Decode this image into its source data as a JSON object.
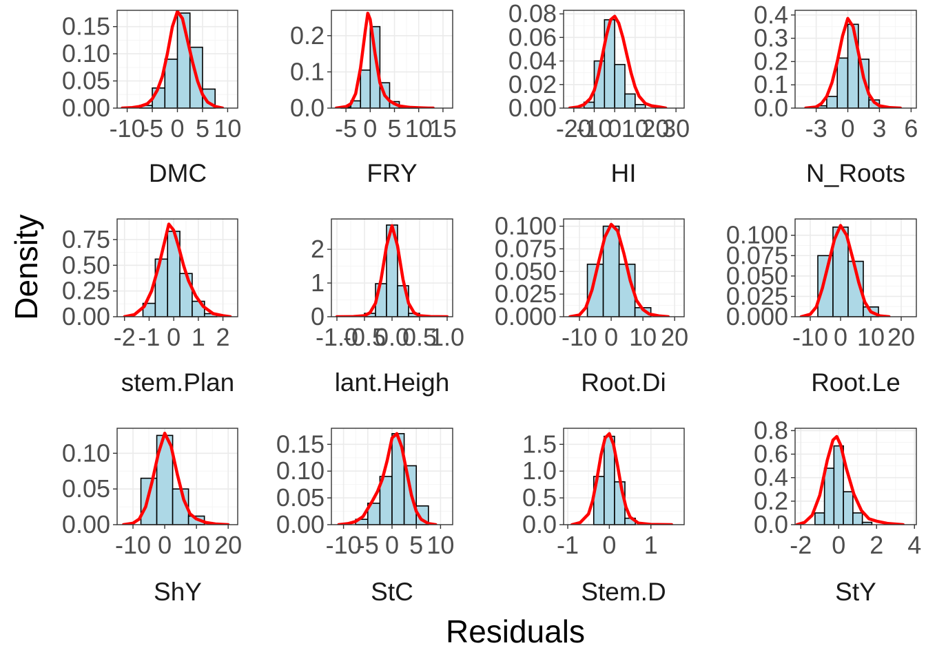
{
  "figure": {
    "xlabel": "Residuals",
    "ylabel": "Density"
  },
  "colors": {
    "bar_fill": "#add8e6",
    "bar_stroke": "#000000",
    "density_line": "#ff0000",
    "grid_major": "#ebebeb",
    "grid_minor": "#f5f5f5",
    "panel_border": "#333333"
  },
  "chart_data": [
    {
      "type": "bar",
      "title": "DMC",
      "xlim": [
        -12,
        12
      ],
      "ylim": [
        0,
        0.18
      ],
      "x_ticks": [
        -10,
        -5,
        0,
        5,
        10
      ],
      "x_tick_labels": [
        "-10",
        "-5",
        "0",
        "5",
        "10"
      ],
      "y_ticks": [
        0,
        0.05,
        0.1,
        0.15
      ],
      "y_tick_labels": [
        "0.00",
        "0.05",
        "0.10",
        "0.15"
      ],
      "bin_edges": [
        -7.5,
        -5,
        -2.5,
        0,
        2.5,
        5,
        7.5
      ],
      "bin_values": [
        0.005,
        0.037,
        0.09,
        0.175,
        0.112,
        0.035
      ],
      "density": {
        "x": [
          -11,
          -9,
          -7.5,
          -6,
          -5,
          -4,
          -3,
          -2,
          -1,
          0,
          1,
          2,
          3,
          4,
          5,
          6,
          7.5,
          9
        ],
        "y": [
          0,
          0.001,
          0.003,
          0.008,
          0.017,
          0.033,
          0.058,
          0.1,
          0.15,
          0.178,
          0.165,
          0.125,
          0.085,
          0.05,
          0.025,
          0.011,
          0.003,
          0
        ]
      }
    },
    {
      "type": "bar",
      "title": "FRY",
      "xlim": [
        -8,
        17
      ],
      "ylim": [
        0,
        0.27
      ],
      "x_ticks": [
        -5,
        0,
        5,
        10,
        15
      ],
      "x_tick_labels": [
        "-5",
        "0",
        "5",
        "10",
        "15"
      ],
      "y_ticks": [
        0,
        0.1,
        0.2
      ],
      "y_tick_labels": [
        "0.0",
        "0.1",
        "0.2"
      ],
      "bin_edges": [
        -6,
        -4,
        -2,
        0,
        2,
        4,
        6,
        8,
        10
      ],
      "bin_values": [
        0.003,
        0.02,
        0.105,
        0.225,
        0.07,
        0.018,
        0.005,
        0.001
      ],
      "density": {
        "x": [
          -7,
          -5,
          -4,
          -3,
          -2,
          -1,
          -0.5,
          0,
          1,
          2,
          3,
          4,
          5,
          6,
          8,
          10,
          12,
          13
        ],
        "y": [
          0,
          0.004,
          0.012,
          0.04,
          0.11,
          0.215,
          0.262,
          0.245,
          0.15,
          0.07,
          0.035,
          0.02,
          0.012,
          0.006,
          0.002,
          0.001,
          0,
          0
        ]
      }
    },
    {
      "type": "bar",
      "title": "HI",
      "xlim": [
        -25,
        34
      ],
      "ylim": [
        0,
        0.083
      ],
      "x_ticks": [
        -20,
        -10,
        0,
        10,
        20,
        30
      ],
      "x_tick_labels": [
        "-20",
        "-10",
        "0",
        "10",
        "20",
        "30"
      ],
      "y_ticks": [
        0,
        0.02,
        0.04,
        0.06,
        0.08
      ],
      "y_tick_labels": [
        "0.00",
        "0.02",
        "0.04",
        "0.06",
        "0.08"
      ],
      "bin_edges": [
        -15,
        -10,
        -5,
        0,
        5,
        10,
        15
      ],
      "bin_values": [
        0.005,
        0.04,
        0.075,
        0.037,
        0.012,
        0.003
      ],
      "density": {
        "x": [
          -22,
          -18,
          -15,
          -12,
          -10,
          -8,
          -6,
          -4,
          -2,
          0,
          2,
          4,
          6,
          8,
          10,
          12,
          15,
          18,
          22,
          25
        ],
        "y": [
          0,
          0.001,
          0.003,
          0.008,
          0.015,
          0.028,
          0.045,
          0.062,
          0.075,
          0.078,
          0.072,
          0.06,
          0.045,
          0.03,
          0.018,
          0.01,
          0.004,
          0.002,
          0.001,
          0
        ]
      }
    },
    {
      "type": "bar",
      "title": "N_Roots",
      "xlim": [
        -5,
        6.5
      ],
      "ylim": [
        0,
        0.42
      ],
      "x_ticks": [
        -3,
        0,
        3,
        6
      ],
      "x_tick_labels": [
        "-3",
        "0",
        "3",
        "6"
      ],
      "y_ticks": [
        0,
        0.1,
        0.2,
        0.3,
        0.4
      ],
      "y_tick_labels": [
        "0.0",
        "0.1",
        "0.2",
        "0.3",
        "0.4"
      ],
      "bin_edges": [
        -3,
        -2,
        -1,
        0,
        1,
        2,
        3
      ],
      "bin_values": [
        0.01,
        0.05,
        0.215,
        0.36,
        0.21,
        0.035
      ],
      "density": {
        "x": [
          -4,
          -3,
          -2.5,
          -2,
          -1.5,
          -1,
          -0.5,
          0,
          0.5,
          1,
          1.5,
          2,
          2.5,
          3,
          4,
          5
        ],
        "y": [
          0,
          0.005,
          0.02,
          0.05,
          0.11,
          0.2,
          0.31,
          0.385,
          0.35,
          0.24,
          0.13,
          0.06,
          0.025,
          0.01,
          0.002,
          0
        ]
      }
    },
    {
      "type": "bar",
      "title": "stem.Plan",
      "xlim": [
        -2.3,
        2.6
      ],
      "ylim": [
        0,
        0.95
      ],
      "x_ticks": [
        -2,
        -1,
        0,
        1,
        2
      ],
      "x_tick_labels": [
        "-2",
        "-1",
        "0",
        "1",
        "2"
      ],
      "y_ticks": [
        0,
        0.25,
        0.5,
        0.75
      ],
      "y_tick_labels": [
        "0.00",
        "0.25",
        "0.50",
        "0.75"
      ],
      "bin_edges": [
        -1.25,
        -0.75,
        -0.25,
        0.25,
        0.75,
        1.25,
        1.75
      ],
      "bin_values": [
        0.13,
        0.56,
        0.83,
        0.42,
        0.15,
        0.03
      ],
      "density": {
        "x": [
          -2,
          -1.6,
          -1.2,
          -0.9,
          -0.6,
          -0.4,
          -0.2,
          0,
          0.2,
          0.4,
          0.6,
          0.9,
          1.2,
          1.6,
          2,
          2.3
        ],
        "y": [
          0,
          0.02,
          0.1,
          0.25,
          0.5,
          0.7,
          0.9,
          0.84,
          0.68,
          0.5,
          0.35,
          0.2,
          0.1,
          0.03,
          0.01,
          0
        ]
      }
    },
    {
      "type": "bar",
      "title": "lant.Heigh",
      "xlim": [
        -1.1,
        1.1
      ],
      "ylim": [
        0,
        2.9
      ],
      "x_ticks": [
        -1.0,
        -0.5,
        0.0,
        0.5,
        1.0
      ],
      "x_tick_labels": [
        "-1.0",
        "-0.5",
        "0.0",
        "0.5",
        "1.0"
      ],
      "y_ticks": [
        0,
        1,
        2
      ],
      "y_tick_labels": [
        "0",
        "1",
        "2"
      ],
      "bin_edges": [
        -0.5,
        -0.3,
        -0.1,
        0.1,
        0.3,
        0.5
      ],
      "bin_values": [
        0.1,
        0.98,
        2.72,
        0.92,
        0.1
      ],
      "density": {
        "x": [
          -1,
          -0.7,
          -0.5,
          -0.4,
          -0.3,
          -0.2,
          -0.1,
          0,
          0.1,
          0.2,
          0.3,
          0.4,
          0.5,
          0.7,
          1
        ],
        "y": [
          0,
          0.005,
          0.03,
          0.12,
          0.4,
          1.1,
          2.1,
          2.7,
          2.1,
          1.1,
          0.4,
          0.12,
          0.03,
          0.005,
          0
        ]
      }
    },
    {
      "type": "bar",
      "title": "Root.Di",
      "xlim": [
        -15,
        23
      ],
      "ylim": [
        0,
        0.108
      ],
      "x_ticks": [
        -10,
        0,
        10,
        20
      ],
      "x_tick_labels": [
        "-10",
        "0",
        "10",
        "20"
      ],
      "y_ticks": [
        0,
        0.025,
        0.05,
        0.075,
        0.1
      ],
      "y_tick_labels": [
        "0.000",
        "0.025",
        "0.050",
        "0.075",
        "0.100"
      ],
      "bin_edges": [
        -7.5,
        -2.5,
        2.5,
        7.5,
        12.5
      ],
      "bin_values": [
        0.058,
        0.1,
        0.058,
        0.01
      ],
      "density": {
        "x": [
          -13,
          -10,
          -8,
          -6,
          -4,
          -2,
          0,
          2,
          4,
          6,
          8,
          10,
          12,
          15,
          18
        ],
        "y": [
          0,
          0.002,
          0.01,
          0.03,
          0.06,
          0.088,
          0.102,
          0.095,
          0.07,
          0.04,
          0.018,
          0.008,
          0.003,
          0.001,
          0
        ]
      }
    },
    {
      "type": "bar",
      "title": "Root.Le",
      "xlim": [
        -15,
        25
      ],
      "ylim": [
        0,
        0.12
      ],
      "x_ticks": [
        -10,
        0,
        10,
        20
      ],
      "x_tick_labels": [
        "-10",
        "0",
        "10",
        "20"
      ],
      "y_ticks": [
        0,
        0.025,
        0.05,
        0.075,
        0.1
      ],
      "y_tick_labels": [
        "0.000",
        "0.025",
        "0.050",
        "0.075",
        "0.100"
      ],
      "bin_edges": [
        -7.5,
        -2.5,
        2.5,
        7.5,
        12.5
      ],
      "bin_values": [
        0.075,
        0.11,
        0.068,
        0.012
      ],
      "density": {
        "x": [
          -13,
          -10,
          -8,
          -6,
          -4,
          -2,
          0,
          2,
          4,
          6,
          8,
          10,
          13,
          16
        ],
        "y": [
          0,
          0.003,
          0.012,
          0.035,
          0.065,
          0.095,
          0.112,
          0.1,
          0.072,
          0.042,
          0.018,
          0.006,
          0.001,
          0
        ]
      }
    },
    {
      "type": "bar",
      "title": "ShY",
      "xlim": [
        -15,
        23
      ],
      "ylim": [
        0,
        0.135
      ],
      "x_ticks": [
        -10,
        0,
        10,
        20
      ],
      "x_tick_labels": [
        "-10",
        "0",
        "10",
        "20"
      ],
      "y_ticks": [
        0,
        0.05,
        0.1
      ],
      "y_tick_labels": [
        "0.00",
        "0.05",
        "0.10"
      ],
      "bin_edges": [
        -7.5,
        -2.5,
        2.5,
        7.5,
        12.5
      ],
      "bin_values": [
        0.065,
        0.125,
        0.05,
        0.012
      ],
      "density": {
        "x": [
          -13,
          -10,
          -8,
          -6,
          -4,
          -2,
          0,
          2,
          4,
          6,
          8,
          10,
          13,
          16,
          20
        ],
        "y": [
          0,
          0.002,
          0.008,
          0.025,
          0.06,
          0.1,
          0.128,
          0.11,
          0.07,
          0.035,
          0.015,
          0.008,
          0.003,
          0.001,
          0
        ]
      }
    },
    {
      "type": "bar",
      "title": "StC",
      "xlim": [
        -12.5,
        12.5
      ],
      "ylim": [
        0,
        0.18
      ],
      "x_ticks": [
        -10,
        -5,
        0,
        5,
        10
      ],
      "x_tick_labels": [
        "-10",
        "-5",
        "0",
        "5",
        "10"
      ],
      "y_ticks": [
        0,
        0.05,
        0.1,
        0.15
      ],
      "y_tick_labels": [
        "0.00",
        "0.05",
        "0.10",
        "0.15"
      ],
      "bin_edges": [
        -7.5,
        -5,
        -2.5,
        0,
        2.5,
        5,
        7.5
      ],
      "bin_values": [
        0.01,
        0.04,
        0.09,
        0.17,
        0.11,
        0.035
      ],
      "density": {
        "x": [
          -11,
          -9,
          -7.5,
          -6,
          -5,
          -4,
          -3,
          -2,
          -1,
          0,
          1,
          2,
          3,
          4,
          5,
          6,
          7.5,
          9
        ],
        "y": [
          0,
          0.002,
          0.006,
          0.015,
          0.03,
          0.045,
          0.062,
          0.085,
          0.12,
          0.162,
          0.17,
          0.145,
          0.1,
          0.055,
          0.025,
          0.01,
          0.002,
          0
        ]
      }
    },
    {
      "type": "bar",
      "title": "Stem.D",
      "xlim": [
        -1.1,
        1.8
      ],
      "ylim": [
        0,
        1.8
      ],
      "x_ticks": [
        -1,
        0,
        1
      ],
      "x_tick_labels": [
        "-1",
        "0",
        "1"
      ],
      "y_ticks": [
        0,
        0.5,
        1.0,
        1.5
      ],
      "y_tick_labels": [
        "0.0",
        "0.5",
        "1.0",
        "1.5"
      ],
      "bin_edges": [
        -0.375,
        -0.125,
        0.125,
        0.375,
        0.625
      ],
      "bin_values": [
        0.9,
        1.65,
        0.8,
        0.12
      ],
      "density": {
        "x": [
          -0.9,
          -0.7,
          -0.5,
          -0.4,
          -0.3,
          -0.2,
          -0.1,
          0,
          0.1,
          0.2,
          0.3,
          0.4,
          0.5,
          0.7,
          1,
          1.5
        ],
        "y": [
          0,
          0.04,
          0.2,
          0.45,
          0.85,
          1.3,
          1.62,
          1.7,
          1.5,
          1.1,
          0.65,
          0.33,
          0.14,
          0.03,
          0.005,
          0
        ]
      }
    },
    {
      "type": "bar",
      "title": "StY",
      "xlim": [
        -2.3,
        4.1
      ],
      "ylim": [
        0,
        0.82
      ],
      "x_ticks": [
        -2,
        0,
        2,
        4
      ],
      "x_tick_labels": [
        "-2",
        "0",
        "2",
        "4"
      ],
      "y_ticks": [
        0,
        0.2,
        0.4,
        0.6,
        0.8
      ],
      "y_tick_labels": [
        "0.0",
        "0.2",
        "0.4",
        "0.6",
        "0.8"
      ],
      "bin_edges": [
        -1.25,
        -0.75,
        -0.25,
        0.25,
        0.75,
        1.25,
        1.75
      ],
      "bin_values": [
        0.1,
        0.48,
        0.67,
        0.28,
        0.1,
        0.02
      ],
      "density": {
        "x": [
          -2.2,
          -1.8,
          -1.4,
          -1,
          -0.6,
          -0.3,
          -0.1,
          0.1,
          0.4,
          0.8,
          1.2,
          1.6,
          2,
          2.6,
          3.4
        ],
        "y": [
          0,
          0.02,
          0.08,
          0.25,
          0.55,
          0.72,
          0.75,
          0.68,
          0.48,
          0.26,
          0.12,
          0.05,
          0.03,
          0.01,
          0
        ]
      }
    }
  ]
}
